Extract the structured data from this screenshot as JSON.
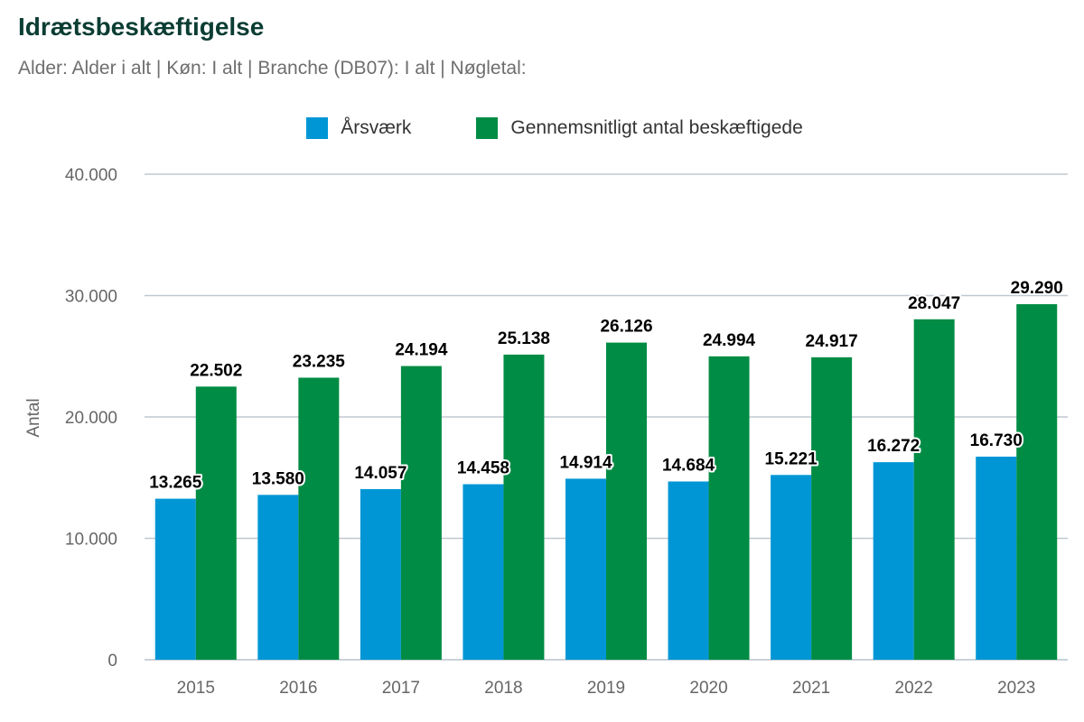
{
  "chart_data": {
    "type": "bar",
    "title": "Idrætsbeskæftigelse",
    "subtitle": "Alder: Alder i alt | Køn: I alt | Branche (DB07): I alt | Nøgletal:",
    "categories": [
      "2015",
      "2016",
      "2017",
      "2018",
      "2019",
      "2020",
      "2021",
      "2022",
      "2023"
    ],
    "series": [
      {
        "name": "Årsværk",
        "color": "#0096d6",
        "values": [
          13265,
          13580,
          14057,
          14458,
          14914,
          14684,
          15221,
          16272,
          16730
        ],
        "labels": [
          "13.265",
          "13.580",
          "14.057",
          "14.458",
          "14.914",
          "14.684",
          "15.221",
          "16.272",
          "16.730"
        ]
      },
      {
        "name": "Gennemsnitligt antal beskæftigede",
        "color": "#008c44",
        "values": [
          22502,
          23235,
          24194,
          25138,
          26126,
          24994,
          24917,
          28047,
          29290
        ],
        "labels": [
          "22.502",
          "23.235",
          "24.194",
          "25.138",
          "26.126",
          "24.994",
          "24.917",
          "28.047",
          "29.290"
        ]
      }
    ],
    "ylabel": "Antal",
    "xlabel": "",
    "ylim": [
      0,
      40000
    ],
    "yticks": [
      0,
      10000,
      20000,
      30000,
      40000
    ],
    "ytick_labels": [
      "0",
      "10.000",
      "20.000",
      "30.000",
      "40.000"
    ],
    "gridlines": true,
    "gridline_color": "#c0c8d0",
    "legend_position": "top-center"
  }
}
